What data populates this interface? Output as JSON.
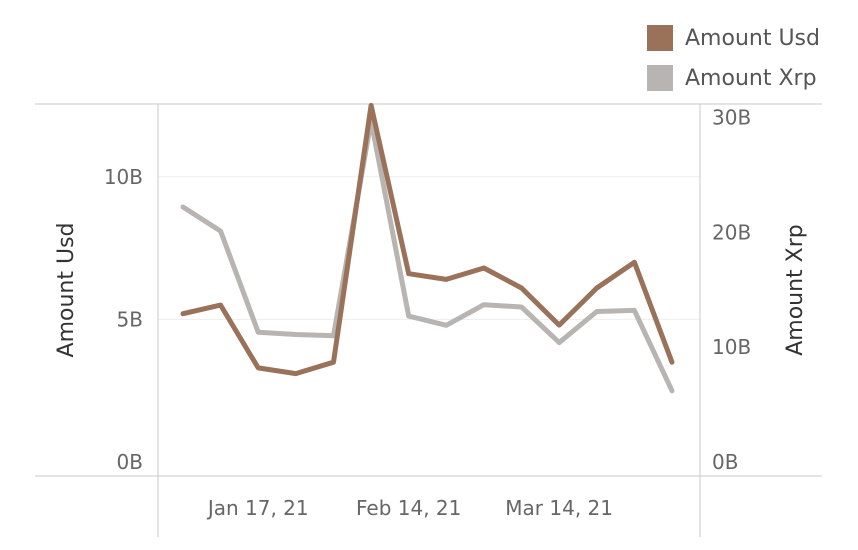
{
  "chart_data": {
    "type": "line",
    "legend_position": "top-right",
    "grid": true,
    "x_tick_labels": [
      "Jan 17, 21",
      "Feb 14, 21",
      "Mar 14, 21"
    ],
    "x": [
      "2021-01-03",
      "2021-01-10",
      "2021-01-17",
      "2021-01-24",
      "2021-01-31",
      "2021-02-07",
      "2021-02-14",
      "2021-02-21",
      "2021-02-28",
      "2021-03-07",
      "2021-03-14",
      "2021-03-21",
      "2021-03-28",
      "2021-04-04"
    ],
    "y_left": {
      "label": "Amount Usd",
      "range": [
        0,
        12.2
      ],
      "ticks": [
        "0B",
        "5B",
        "10B"
      ]
    },
    "y_right": {
      "label": "Amount Xrp",
      "range": [
        0,
        30.3
      ],
      "ticks": [
        "0B",
        "10B",
        "20B",
        "30B"
      ]
    },
    "series": [
      {
        "name": "Amount Usd",
        "axis": "left",
        "color": "#9a7159",
        "values": [
          5.2,
          5.5,
          3.3,
          3.1,
          3.5,
          12.5,
          6.6,
          6.4,
          6.8,
          6.1,
          4.8,
          6.1,
          7.0,
          3.5
        ]
      },
      {
        "name": "Amount Xrp",
        "axis": "right",
        "color": "#b8b4b2",
        "values": [
          22.2,
          20.1,
          11.3,
          11.1,
          11.0,
          29.7,
          12.7,
          11.9,
          13.7,
          13.5,
          10.4,
          13.1,
          13.2,
          6.2
        ]
      }
    ]
  }
}
